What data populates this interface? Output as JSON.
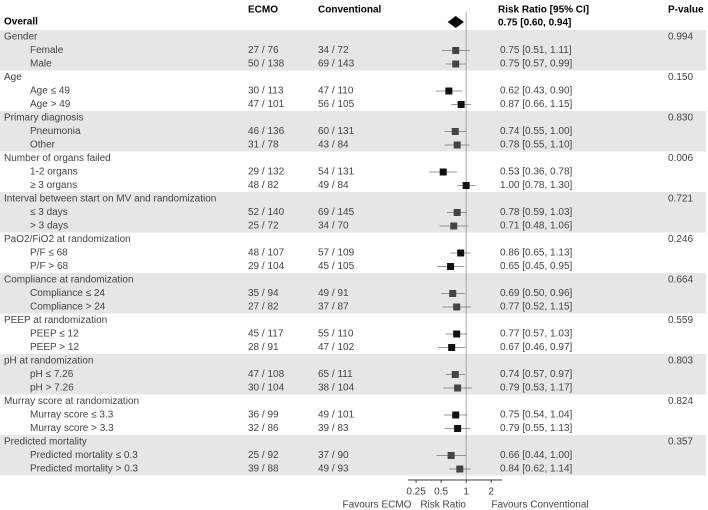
{
  "chart_data": {
    "type": "forest",
    "columns": [
      "ECMO",
      "Conventional",
      "Risk Ratio [95% CI]",
      "P-value"
    ],
    "overall": {
      "label": "Overall",
      "estimate": 0.75,
      "ci": [
        0.6,
        0.94
      ],
      "value_label": "0.75 [0.60, 0.94]"
    },
    "groups": [
      {
        "label": "Gender",
        "p": "0.994",
        "rows": [
          {
            "label": "Female",
            "ecmo": "27 / 76",
            "conv": "34 / 72",
            "estimate": 0.75,
            "ci": [
              0.51,
              1.11
            ],
            "value_label": "0.75 [0.51, 1.11]"
          },
          {
            "label": "Male",
            "ecmo": "50 / 138",
            "conv": "69 / 143",
            "estimate": 0.75,
            "ci": [
              0.57,
              0.99
            ],
            "value_label": "0.75 [0.57, 0.99]"
          }
        ]
      },
      {
        "label": "Age",
        "p": "0.150",
        "rows": [
          {
            "label": "Age ≤ 49",
            "ecmo": "30 / 113",
            "conv": "47 / 110",
            "estimate": 0.62,
            "ci": [
              0.43,
              0.9
            ],
            "value_label": "0.62 [0.43, 0.90]"
          },
          {
            "label": "Age > 49",
            "ecmo": "47 / 101",
            "conv": "56 / 105",
            "estimate": 0.87,
            "ci": [
              0.66,
              1.15
            ],
            "value_label": "0.87 [0.66, 1.15]"
          }
        ]
      },
      {
        "label": "Primary diagnosis",
        "p": "0.830",
        "rows": [
          {
            "label": "Pneumonia",
            "ecmo": "46 / 136",
            "conv": "60 / 131",
            "estimate": 0.74,
            "ci": [
              0.55,
              1.0
            ],
            "value_label": "0.74 [0.55, 1.00]"
          },
          {
            "label": "Other",
            "ecmo": "31 / 78",
            "conv": "43 / 84",
            "estimate": 0.78,
            "ci": [
              0.55,
              1.1
            ],
            "value_label": "0.78 [0.55, 1.10]"
          }
        ]
      },
      {
        "label": "Number of organs failed",
        "p": "0.006",
        "rows": [
          {
            "label": "1-2 organs",
            "ecmo": "29 / 132",
            "conv": "54 / 131",
            "estimate": 0.53,
            "ci": [
              0.36,
              0.78
            ],
            "value_label": "0.53 [0.36, 0.78]"
          },
          {
            "label": "≥ 3 organs",
            "ecmo": "48 / 82",
            "conv": "49 / 84",
            "estimate": 1.0,
            "ci": [
              0.78,
              1.3
            ],
            "value_label": "1.00 [0.78, 1.30]"
          }
        ]
      },
      {
        "label": "Interval between start on MV and randomization",
        "p": "0.721",
        "rows": [
          {
            "label": "≤ 3 days",
            "ecmo": "52 / 140",
            "conv": "69 / 145",
            "estimate": 0.78,
            "ci": [
              0.59,
              1.03
            ],
            "value_label": "0.78 [0.59, 1.03]"
          },
          {
            "label": "> 3 days",
            "ecmo": "25 / 72",
            "conv": "34 / 70",
            "estimate": 0.71,
            "ci": [
              0.48,
              1.06
            ],
            "value_label": "0.71 [0.48, 1.06]"
          }
        ]
      },
      {
        "label": "PaO2/FiO2 at randomization",
        "p": "0.246",
        "rows": [
          {
            "label": "P/F ≤ 68",
            "ecmo": "48 / 107",
            "conv": "57 / 109",
            "estimate": 0.86,
            "ci": [
              0.65,
              1.13
            ],
            "value_label": "0.86 [0.65, 1.13]"
          },
          {
            "label": "P/F > 68",
            "ecmo": "29 / 104",
            "conv": "45 / 105",
            "estimate": 0.65,
            "ci": [
              0.45,
              0.95
            ],
            "value_label": "0.65 [0.45, 0.95]"
          }
        ]
      },
      {
        "label": "Compliance at randomization",
        "p": "0.664",
        "rows": [
          {
            "label": "Compliance ≤ 24",
            "ecmo": "35 / 94",
            "conv": "49 / 91",
            "estimate": 0.69,
            "ci": [
              0.5,
              0.96
            ],
            "value_label": "0.69 [0.50, 0.96]"
          },
          {
            "label": "Compliance > 24",
            "ecmo": "27 / 82",
            "conv": "37 / 87",
            "estimate": 0.77,
            "ci": [
              0.52,
              1.15
            ],
            "value_label": "0.77 [0.52, 1.15]"
          }
        ]
      },
      {
        "label": "PEEP at randomization",
        "p": "0.559",
        "rows": [
          {
            "label": "PEEP ≤ 12",
            "ecmo": "45 / 117",
            "conv": "55 / 110",
            "estimate": 0.77,
            "ci": [
              0.57,
              1.03
            ],
            "value_label": "0.77 [0.57, 1.03]"
          },
          {
            "label": "PEEP > 12",
            "ecmo": "28 / 91",
            "conv": "47 / 102",
            "estimate": 0.67,
            "ci": [
              0.46,
              0.97
            ],
            "value_label": "0.67 [0.46, 0.97]"
          }
        ]
      },
      {
        "label": "pH at randomization",
        "p": "0.803",
        "rows": [
          {
            "label": "pH ≤ 7.26",
            "ecmo": "47 / 108",
            "conv": "65 / 111",
            "estimate": 0.74,
            "ci": [
              0.57,
              0.97
            ],
            "value_label": "0.74 [0.57, 0.97]"
          },
          {
            "label": "pH > 7.26",
            "ecmo": "30 / 104",
            "conv": "38 / 104",
            "estimate": 0.79,
            "ci": [
              0.53,
              1.17
            ],
            "value_label": "0.79 [0.53, 1.17]"
          }
        ]
      },
      {
        "label": "Murray score at randomization",
        "p": "0.824",
        "rows": [
          {
            "label": "Murray score ≤ 3.3",
            "ecmo": "36 / 99",
            "conv": "49 / 101",
            "estimate": 0.75,
            "ci": [
              0.54,
              1.04
            ],
            "value_label": "0.75 [0.54, 1.04]"
          },
          {
            "label": "Murray score > 3.3",
            "ecmo": "32 / 86",
            "conv": "39 / 83",
            "estimate": 0.79,
            "ci": [
              0.55,
              1.13
            ],
            "value_label": "0.79 [0.55, 1.13]"
          }
        ]
      },
      {
        "label": "Predicted mortality",
        "p": "0.357",
        "rows": [
          {
            "label": "Predicted mortality ≤ 0.3",
            "ecmo": "25 / 92",
            "conv": "37 / 90",
            "estimate": 0.66,
            "ci": [
              0.44,
              1.0
            ],
            "value_label": "0.66 [0.44, 1.00]"
          },
          {
            "label": "Predicted mortality > 0.3",
            "ecmo": "39 / 88",
            "conv": "49 / 93",
            "estimate": 0.84,
            "ci": [
              0.62,
              1.14
            ],
            "value_label": "0.84 [0.62, 1.14]"
          }
        ]
      }
    ],
    "xlim": [
      0.2,
      2.7
    ],
    "xticks": [
      0.25,
      0.5,
      1,
      2
    ],
    "log_x": true,
    "reference": 1,
    "xlabel": "Risk Ratio",
    "left_note": "Favours ECMO",
    "right_note": "Favours Conventional",
    "marker_color": "#111111",
    "shade_color": "#e6e6e6"
  }
}
